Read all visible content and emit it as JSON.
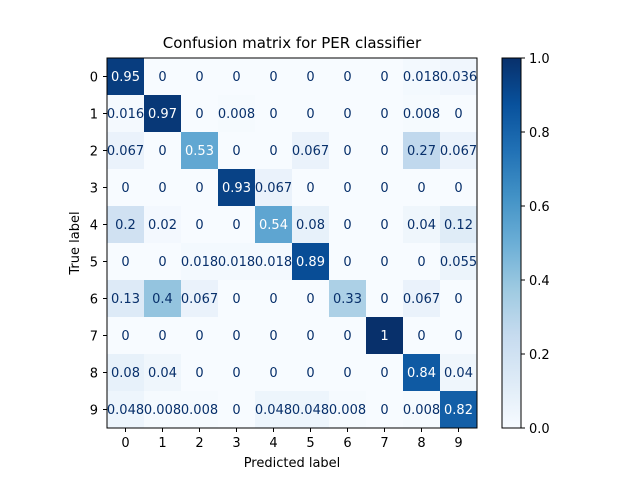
{
  "chart_data": {
    "type": "heatmap",
    "title": "Confusion matrix for PER classifier",
    "xlabel": "Predicted label",
    "ylabel": "True label",
    "x_categories": [
      "0",
      "1",
      "2",
      "3",
      "4",
      "5",
      "6",
      "7",
      "8",
      "9"
    ],
    "y_categories": [
      "0",
      "1",
      "2",
      "3",
      "4",
      "5",
      "6",
      "7",
      "8",
      "9"
    ],
    "values": [
      [
        0.95,
        0,
        0,
        0,
        0,
        0,
        0,
        0,
        0.018,
        0.036
      ],
      [
        0.016,
        0.97,
        0,
        0.008,
        0,
        0,
        0,
        0,
        0.008,
        0
      ],
      [
        0.067,
        0,
        0.53,
        0,
        0,
        0.067,
        0,
        0,
        0.27,
        0.067
      ],
      [
        0,
        0,
        0,
        0.93,
        0.067,
        0,
        0,
        0,
        0,
        0
      ],
      [
        0.2,
        0.02,
        0,
        0,
        0.54,
        0.08,
        0,
        0,
        0.04,
        0.12
      ],
      [
        0,
        0,
        0.018,
        0.018,
        0.018,
        0.89,
        0,
        0,
        0,
        0.055
      ],
      [
        0.13,
        0.4,
        0.067,
        0,
        0,
        0,
        0.33,
        0,
        0.067,
        0
      ],
      [
        0,
        0,
        0,
        0,
        0,
        0,
        0,
        1,
        0,
        0
      ],
      [
        0.08,
        0.04,
        0,
        0,
        0,
        0,
        0,
        0,
        0.84,
        0.04
      ],
      [
        0.048,
        0.008,
        0.008,
        0,
        0.048,
        0.048,
        0.008,
        0,
        0.008,
        0.82
      ]
    ],
    "colormap": "Blues",
    "colorbar": {
      "range": [
        0.0,
        1.0
      ],
      "ticks": [
        0.0,
        0.2,
        0.4,
        0.6,
        0.8,
        1.0
      ],
      "tick_labels": [
        "0.0",
        "0.2",
        "0.4",
        "0.6",
        "0.8",
        "1.0"
      ]
    },
    "grid": false
  }
}
